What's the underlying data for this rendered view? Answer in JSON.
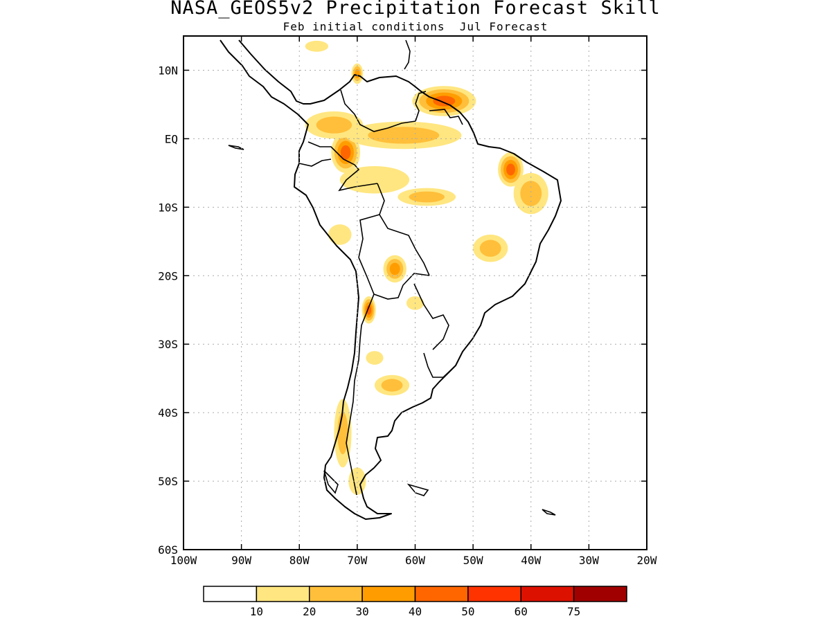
{
  "header": {
    "title": "NASA_GEOS5v2 Precipitation Forecast Skill",
    "subtitle": "Feb initial conditions  Jul Forecast"
  },
  "map": {
    "region": "South America",
    "lon_range": [
      -100,
      -20
    ],
    "lat_range": [
      -60,
      15
    ],
    "grid": true,
    "lon_ticks": [
      "100W",
      "90W",
      "80W",
      "70W",
      "60W",
      "50W",
      "40W",
      "30W",
      "20W"
    ],
    "lat_ticks": [
      "10N",
      "EQ",
      "10S",
      "20S",
      "30S",
      "40S",
      "50S",
      "60S"
    ],
    "lon_tick_values": [
      -100,
      -90,
      -80,
      -70,
      -60,
      -50,
      -40,
      -30,
      -20
    ],
    "lat_tick_values": [
      10,
      0,
      -10,
      -20,
      -30,
      -40,
      -50,
      -60
    ]
  },
  "colorbar": {
    "labels": [
      "10",
      "20",
      "30",
      "40",
      "50",
      "60",
      "75"
    ],
    "colors": [
      "#ffffff",
      "#ffe680",
      "#ffbf3a",
      "#ff9d00",
      "#ff6600",
      "#ff3300",
      "#dd1100",
      "#a00000"
    ]
  },
  "skill_patches": [
    {
      "name": "guianas-max",
      "lon": -55,
      "lat": 5.5,
      "rx": 5.5,
      "ry": 2.2,
      "level": 4
    },
    {
      "name": "colombia-max",
      "lon": -72,
      "lat": -2,
      "rx": 2.5,
      "ry": 3,
      "level": 4
    },
    {
      "name": "ne-brazil-max",
      "lon": -43.5,
      "lat": -4.5,
      "rx": 2.2,
      "ry": 2.5,
      "level": 4
    },
    {
      "name": "andes-max",
      "lon": -68,
      "lat": -25,
      "rx": 1.2,
      "ry": 2,
      "level": 4
    },
    {
      "name": "bolivia-max",
      "lon": -63.5,
      "lat": -19,
      "rx": 2,
      "ry": 2,
      "level": 3
    },
    {
      "name": "amazon-north",
      "lon": -62,
      "lat": 0.5,
      "rx": 10,
      "ry": 2,
      "level": 2
    },
    {
      "name": "colombia-west",
      "lon": -74,
      "lat": 2,
      "rx": 5,
      "ry": 2,
      "level": 2
    },
    {
      "name": "peru-east",
      "lon": -67,
      "lat": -6,
      "rx": 6,
      "ry": 2,
      "level": 1
    },
    {
      "name": "central-amazon",
      "lon": -58,
      "lat": -8.5,
      "rx": 5,
      "ry": 1.3,
      "level": 2
    },
    {
      "name": "central-brazil",
      "lon": -47,
      "lat": -16,
      "rx": 3,
      "ry": 2,
      "level": 2
    },
    {
      "name": "ne-coast",
      "lon": -40,
      "lat": -8,
      "rx": 3,
      "ry": 3,
      "level": 2
    },
    {
      "name": "paraguay",
      "lon": -60,
      "lat": -24,
      "rx": 1.5,
      "ry": 1,
      "level": 1
    },
    {
      "name": "argentina-mid",
      "lon": -64,
      "lat": -36,
      "rx": 3,
      "ry": 1.5,
      "level": 2
    },
    {
      "name": "chile-south",
      "lon": -72.5,
      "lat": -43,
      "rx": 1.5,
      "ry": 5,
      "level": 2
    },
    {
      "name": "venezuela-north",
      "lon": -70,
      "lat": 9.5,
      "rx": 1,
      "ry": 1.5,
      "level": 3
    },
    {
      "name": "central-america",
      "lon": -77,
      "lat": 13.5,
      "rx": 2,
      "ry": 0.8,
      "level": 1
    },
    {
      "name": "peru-coast",
      "lon": -73,
      "lat": -14,
      "rx": 2,
      "ry": 1.5,
      "level": 1
    },
    {
      "name": "patagonia",
      "lon": -70,
      "lat": -50,
      "rx": 1.5,
      "ry": 2,
      "level": 1
    },
    {
      "name": "argentina-north",
      "lon": -67,
      "lat": -32,
      "rx": 1.5,
      "ry": 1,
      "level": 1
    }
  ]
}
